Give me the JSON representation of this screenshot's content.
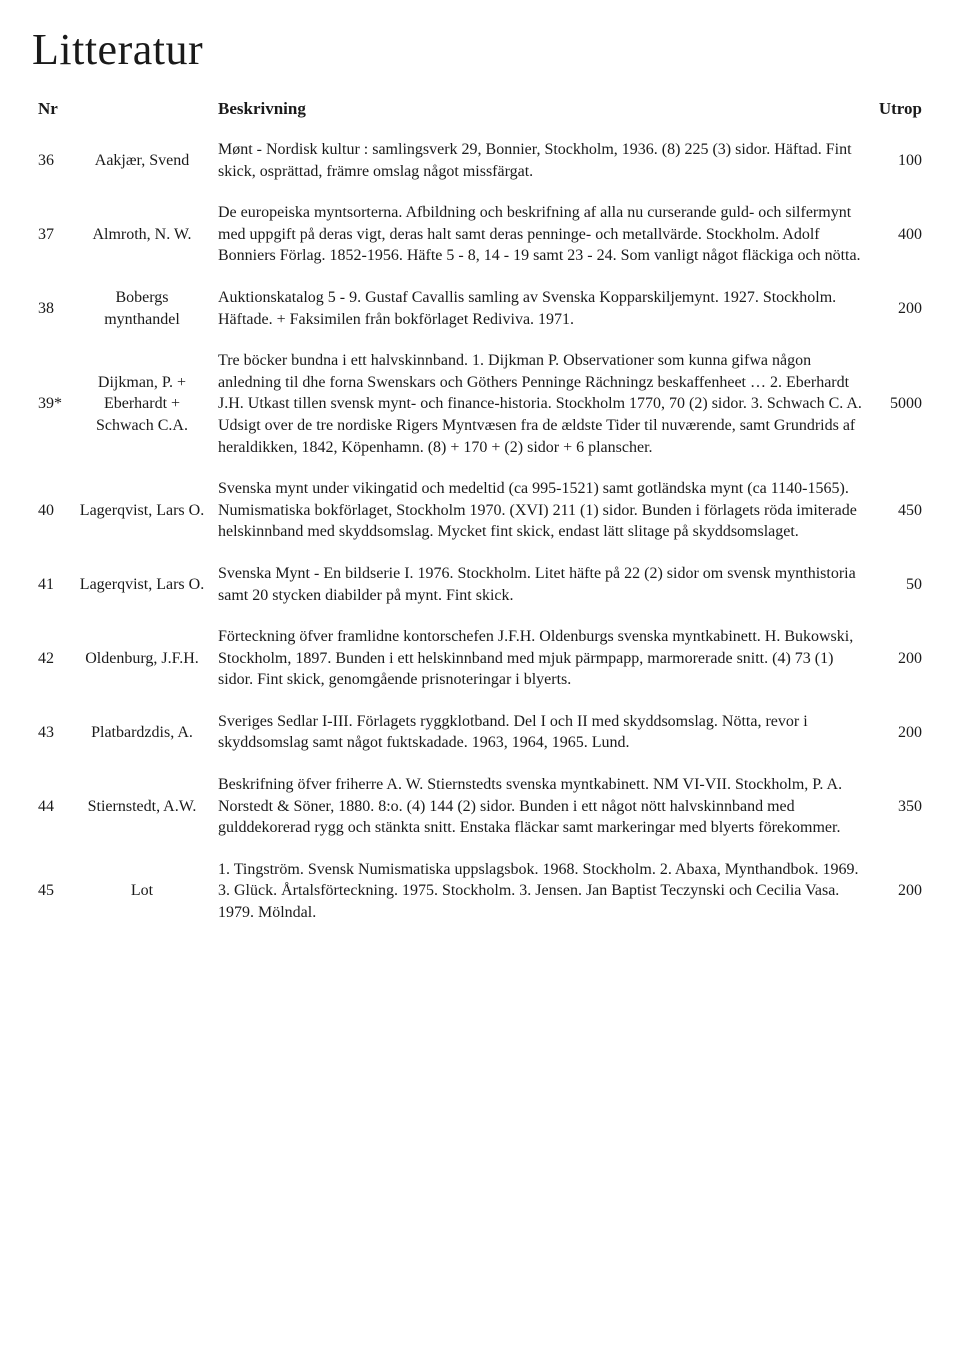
{
  "title": "Litteratur",
  "headers": {
    "nr": "Nr",
    "beskrivning": "Beskrivning",
    "utrop": "Utrop"
  },
  "rows": [
    {
      "nr": "36",
      "author": "Aakjær, Svend",
      "desc": "Mønt - Nordisk kultur : samlingsverk 29, Bonnier, Stockholm, 1936. (8) 225 (3) sidor. Häftad. Fint skick, osprättad, främre omslag något missfärgat.",
      "utrop": "100"
    },
    {
      "nr": "37",
      "author": "Almroth, N. W.",
      "desc": "De europeiska myntsorterna. Afbildning och beskrifning af alla nu curserande guld- och silfermynt med uppgift på deras vigt, deras halt samt deras penninge- och metallvärde. Stockholm. Adolf Bonniers Förlag. 1852-1956. Häfte 5 - 8, 14 - 19 samt 23 - 24. Som vanligt något fläckiga och nötta.",
      "utrop": "400"
    },
    {
      "nr": "38",
      "author": "Bobergs mynthandel",
      "desc": "Auktionskatalog 5 - 9. Gustaf Cavallis samling av Svenska Kopparskiljemynt. 1927. Stockholm. Häftade. + Faksimilen från bokförlaget Rediviva. 1971.",
      "utrop": "200"
    },
    {
      "nr": "39*",
      "author": "Dijkman, P. + Eberhardt + Schwach C.A.",
      "desc": "Tre böcker bundna i ett halvskinnband. 1. Dijkman P. Observationer som kunna gifwa någon anledning til dhe forna Swenskars och Göthers Penninge Rächningz beskaffenheet … 2. Eberhardt J.H. Utkast tillen svensk mynt- och finance-historia. Stockholm 1770, 70 (2) sidor. 3. Schwach C. A. Udsigt over de tre nordiske Rigers Myntvæsen fra de ældste Tider til nuværende, samt Grundrids af heraldikken, 1842, Köpenhamn. (8) + 170 + (2) sidor + 6 planscher.",
      "utrop": "5000"
    },
    {
      "nr": "40",
      "author": "Lagerqvist, Lars O.",
      "desc": "Svenska mynt under vikingatid och medeltid (ca 995-1521) samt gotländska mynt (ca 1140-1565). Numismatiska bokförlaget, Stockholm 1970. (XVI) 211 (1) sidor. Bunden i förlagets röda imiterade helskinnband med skyddsomslag. Mycket fint skick, endast lätt slitage på skyddsomslaget.",
      "utrop": "450"
    },
    {
      "nr": "41",
      "author": "Lagerqvist, Lars O.",
      "desc": "Svenska Mynt - En bildserie I. 1976. Stockholm. Litet häfte på 22 (2) sidor om svensk mynthistoria samt 20 stycken diabilder på mynt. Fint skick.",
      "utrop": "50"
    },
    {
      "nr": "42",
      "author": "Oldenburg, J.F.H.",
      "desc": "Förteckning öfver framlidne kontorschefen J.F.H. Oldenburgs svenska myntkabinett. H. Bukowski, Stockholm, 1897. Bunden i ett helskinnband med mjuk pärmpapp, marmorerade snitt. (4) 73 (1) sidor. Fint skick, genomgående prisnoteringar i blyerts.",
      "utrop": "200"
    },
    {
      "nr": "43",
      "author": "Platbardzdis, A.",
      "desc": "Sveriges Sedlar I-III. Förlagets ryggklotband. Del I och II med skyddsomslag. Nötta, revor i skyddsomslag samt något fuktskadade. 1963, 1964, 1965. Lund.",
      "utrop": "200"
    },
    {
      "nr": "44",
      "author": "Stiernstedt, A.W.",
      "desc": "Beskrifning öfver friherre A. W. Stiernstedts svenska myntkabinett. NM VI-VII. Stockholm, P. A. Norstedt & Söner, 1880. 8:o. (4) 144 (2) sidor. Bunden i ett något nött halvskinnband med gulddekorerad rygg och stänkta snitt. Enstaka fläckar samt markeringar med blyerts förekommer.",
      "utrop": "350"
    },
    {
      "nr": "45",
      "author": "Lot",
      "desc": "1. Tingström. Svensk Numismatiska uppslagsbok. 1968. Stockholm. 2. Abaxa, Mynthandbok. 1969. 3. Glück. Årtalsförteckning. 1975. Stockholm. 3. Jensen. Jan Baptist Teczynski och Cecilia Vasa. 1979. Mölndal.",
      "utrop": "200"
    }
  ]
}
